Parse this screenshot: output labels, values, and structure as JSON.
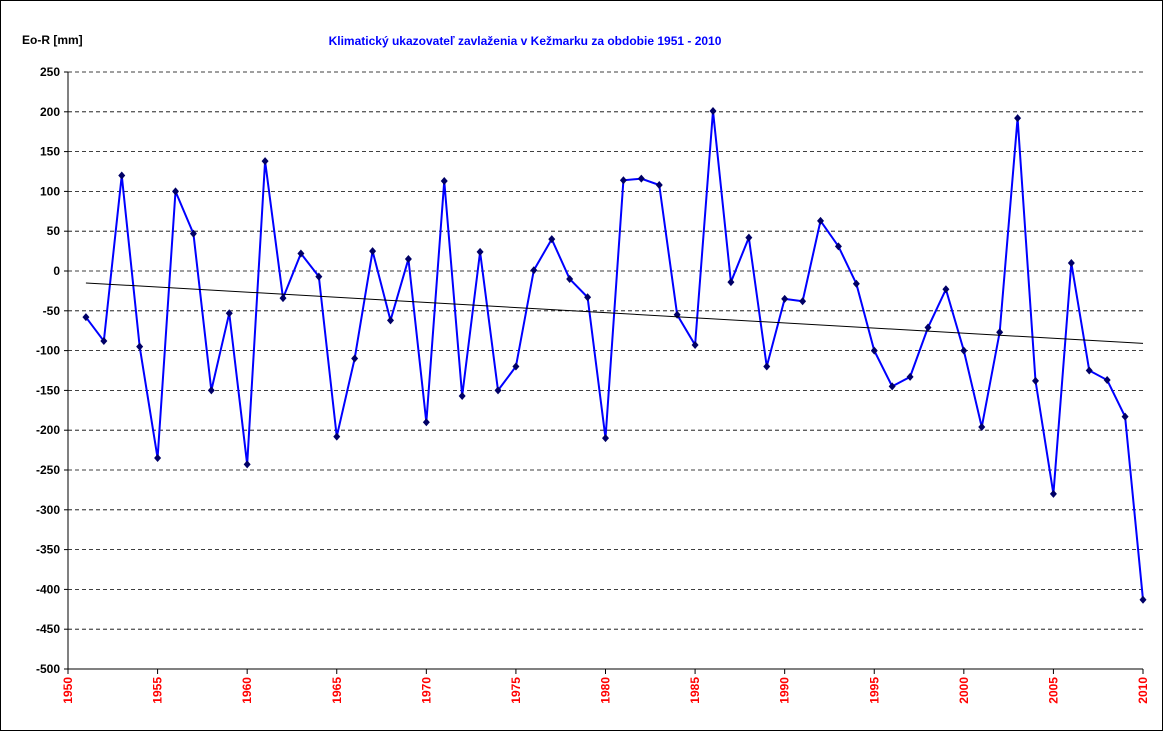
{
  "chart_data": {
    "type": "line",
    "title": "Klimatický ukazovateľ zavlaženia v Kežmarku za obdobie 1951 - 2010",
    "y_label": "Eo-R [mm]",
    "x": [
      1951,
      1952,
      1953,
      1954,
      1955,
      1956,
      1957,
      1958,
      1959,
      1960,
      1961,
      1962,
      1963,
      1964,
      1965,
      1966,
      1967,
      1968,
      1969,
      1970,
      1971,
      1972,
      1973,
      1974,
      1975,
      1976,
      1977,
      1978,
      1979,
      1980,
      1981,
      1982,
      1983,
      1984,
      1985,
      1986,
      1987,
      1988,
      1989,
      1990,
      1991,
      1992,
      1993,
      1994,
      1995,
      1996,
      1997,
      1998,
      1999,
      2000,
      2001,
      2002,
      2003,
      2004,
      2005,
      2006,
      2007,
      2008,
      2009,
      2010
    ],
    "series": [
      {
        "color": "#0000ff",
        "marker_color": "#000066",
        "values": [
          -58,
          -88,
          120,
          -95,
          -235,
          100,
          47,
          -150,
          -53,
          -243,
          138,
          -34,
          22,
          -7,
          -208,
          -110,
          25,
          -62,
          15,
          -190,
          113,
          -157,
          24,
          -150,
          -120,
          1,
          40,
          -10,
          -33,
          -210,
          114,
          116,
          108,
          -55,
          -93,
          201,
          -14,
          42,
          -120,
          -35,
          -38,
          63,
          31,
          -16,
          -100,
          -145,
          -133,
          -71,
          -23,
          -100,
          -196,
          -77,
          192,
          -138,
          -280,
          10,
          -125,
          -137,
          -183,
          -413
        ]
      }
    ],
    "trend": {
      "x": [
        1951,
        2010
      ],
      "values": [
        -15,
        -91
      ],
      "color": "#000000"
    },
    "xlim": [
      1950,
      2010
    ],
    "xticks": [
      1950,
      1955,
      1960,
      1965,
      1970,
      1975,
      1980,
      1985,
      1990,
      1995,
      2000,
      2005,
      2010
    ],
    "ylim": [
      -500,
      250
    ],
    "yticks": [
      -500,
      -450,
      -400,
      -350,
      -300,
      -250,
      -200,
      -150,
      -100,
      -50,
      0,
      50,
      100,
      150,
      200,
      250
    ],
    "grid": true,
    "xtick_color": "#ff0000",
    "title_color": "#0000ff"
  }
}
